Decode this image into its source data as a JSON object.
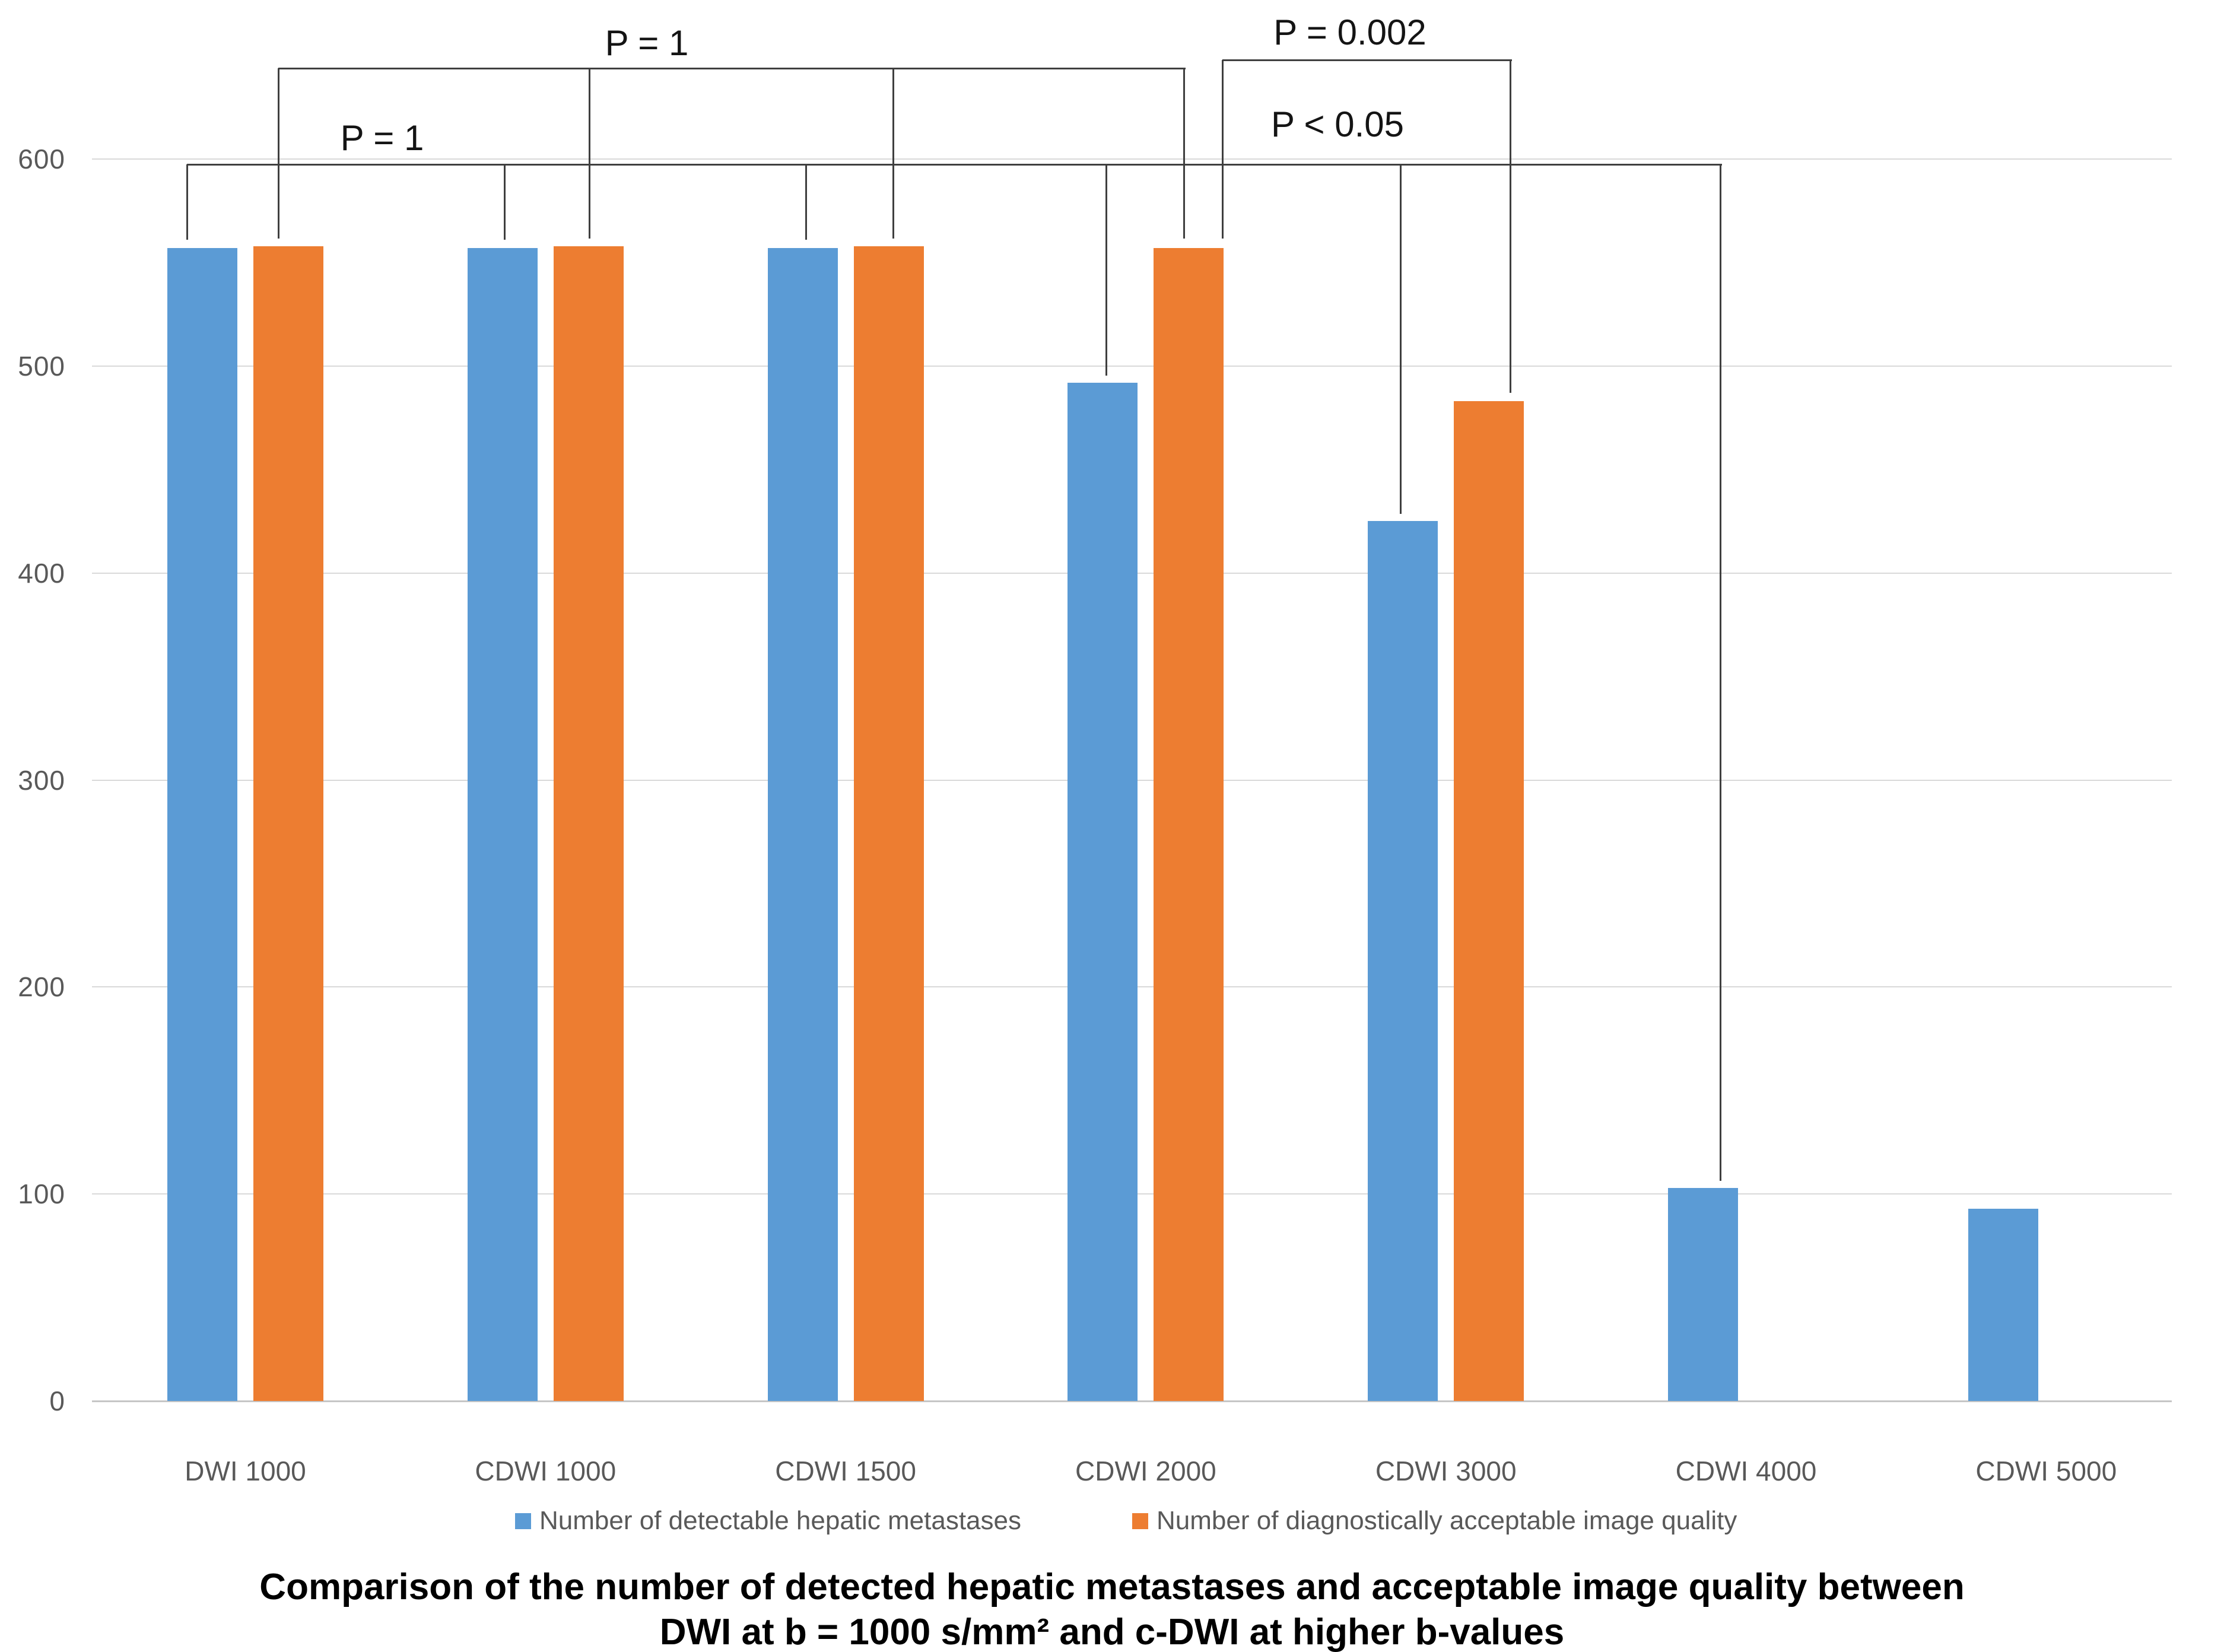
{
  "title": {
    "line1": "Comparison of the number of detected hepatic metastases and acceptable image quality between",
    "line2": "DWI at b = 1000 s/mm² and c-DWI at higher b-values"
  },
  "chart_data": {
    "type": "bar",
    "title": "Comparison of the number of detected hepatic metastases and acceptable image quality between DWI at b = 1000 s/mm² and c-DWI at higher b-values",
    "categories": [
      "DWI 1000",
      "CDWI 1000",
      "CDWI 1500",
      "CDWI 2000",
      "CDWI 3000",
      "CDWI 4000",
      "CDWI 5000"
    ],
    "series": [
      {
        "name": "Number of detectable hepatic metastases",
        "color": "#5B9BD5",
        "values": [
          557,
          557,
          557,
          492,
          425,
          103,
          93
        ]
      },
      {
        "name": "Number of diagnostically acceptable image quality",
        "color": "#ED7D31",
        "values": [
          558,
          558,
          558,
          557,
          483,
          null,
          null
        ]
      }
    ],
    "ylim": [
      0,
      600
    ],
    "yticks": [
      0,
      100,
      200,
      300,
      400,
      500,
      600
    ],
    "xlabel": "",
    "ylabel": "",
    "grid": true,
    "legend_position": "bottom",
    "annotations": [
      {
        "id": "p-top",
        "label": "P = 1",
        "compares": "orange bars: DWI 1000 vs CDWI 1000 vs CDWI 1500 vs CDWI 2000"
      },
      {
        "id": "p-left",
        "label": "P = 1",
        "compares": "blue bars: DWI 1000 vs CDWI 1000 vs CDWI 1500"
      },
      {
        "id": "p-right-top",
        "label": "P = 0.002",
        "compares": "orange bars: CDWI 2000 vs CDWI 3000"
      },
      {
        "id": "p-right",
        "label": "P < 0.05",
        "compares": "blue bars: CDWI 2000 vs CDWI 3000 vs CDWI 4000"
      }
    ]
  }
}
